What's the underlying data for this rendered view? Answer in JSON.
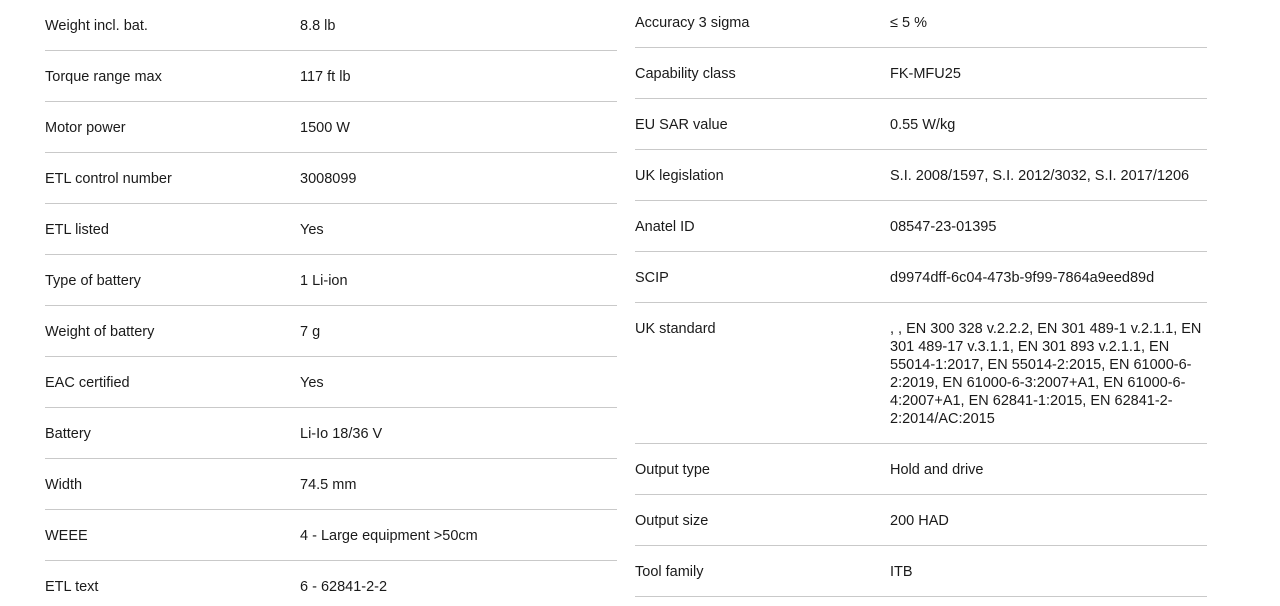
{
  "theme": {
    "background": "#ffffff",
    "text_color": "#1a1a1a",
    "divider_color": "#c9c9c9"
  },
  "spec_table": {
    "left_column": {
      "rows": [
        {
          "label": "Weight incl. bat.",
          "value": "8.8 lb"
        },
        {
          "label": "Torque range max",
          "value": "117 ft lb"
        },
        {
          "label": "Motor power",
          "value": "1500 W"
        },
        {
          "label": "ETL control number",
          "value": "3008099"
        },
        {
          "label": "ETL listed",
          "value": "Yes"
        },
        {
          "label": "Type of battery",
          "value": "1 Li-ion"
        },
        {
          "label": "Weight of battery",
          "value": "7 g"
        },
        {
          "label": "EAC certified",
          "value": "Yes"
        },
        {
          "label": "Battery",
          "value": "Li-Io 18/36 V"
        },
        {
          "label": "Width",
          "value": "74.5 mm"
        },
        {
          "label": "WEEE",
          "value": "4 - Large equipment >50cm"
        },
        {
          "label": "ETL text",
          "value": "6 - 62841-2-2"
        }
      ]
    },
    "right_column": {
      "rows": [
        {
          "label": "Accuracy 3 sigma",
          "value": "≤ 5 %"
        },
        {
          "label": "Capability class",
          "value": "FK-MFU25"
        },
        {
          "label": "EU SAR value",
          "value": "0.55 W/kg"
        },
        {
          "label": "UK legislation",
          "value": "S.I. 2008/1597, S.I. 2012/3032, S.I. 2017/1206"
        },
        {
          "label": "Anatel ID",
          "value": "08547-23-01395"
        },
        {
          "label": "SCIP",
          "value": "d9974dff-6c04-473b-9f99-7864a9eed89d"
        },
        {
          "label": "UK standard",
          "value": ", , EN 300 328 v.2.2.2, EN 301 489-1 v.2.1.1, EN 301 489-17 v.3.1.1, EN 301 893 v.2.1.1, EN 55014-1:2017, EN 55014-2:2015, EN 61000-6-2:2019, EN 61000-6-3:2007+A1, EN 61000-6-4:2007+A1, EN 62841-1:2015, EN 62841-2-2:2014/AC:2015"
        },
        {
          "label": "Output type",
          "value": "Hold and drive"
        },
        {
          "label": "Output size",
          "value": "200 HAD"
        },
        {
          "label": "Tool family",
          "value": "ITB"
        }
      ]
    }
  }
}
